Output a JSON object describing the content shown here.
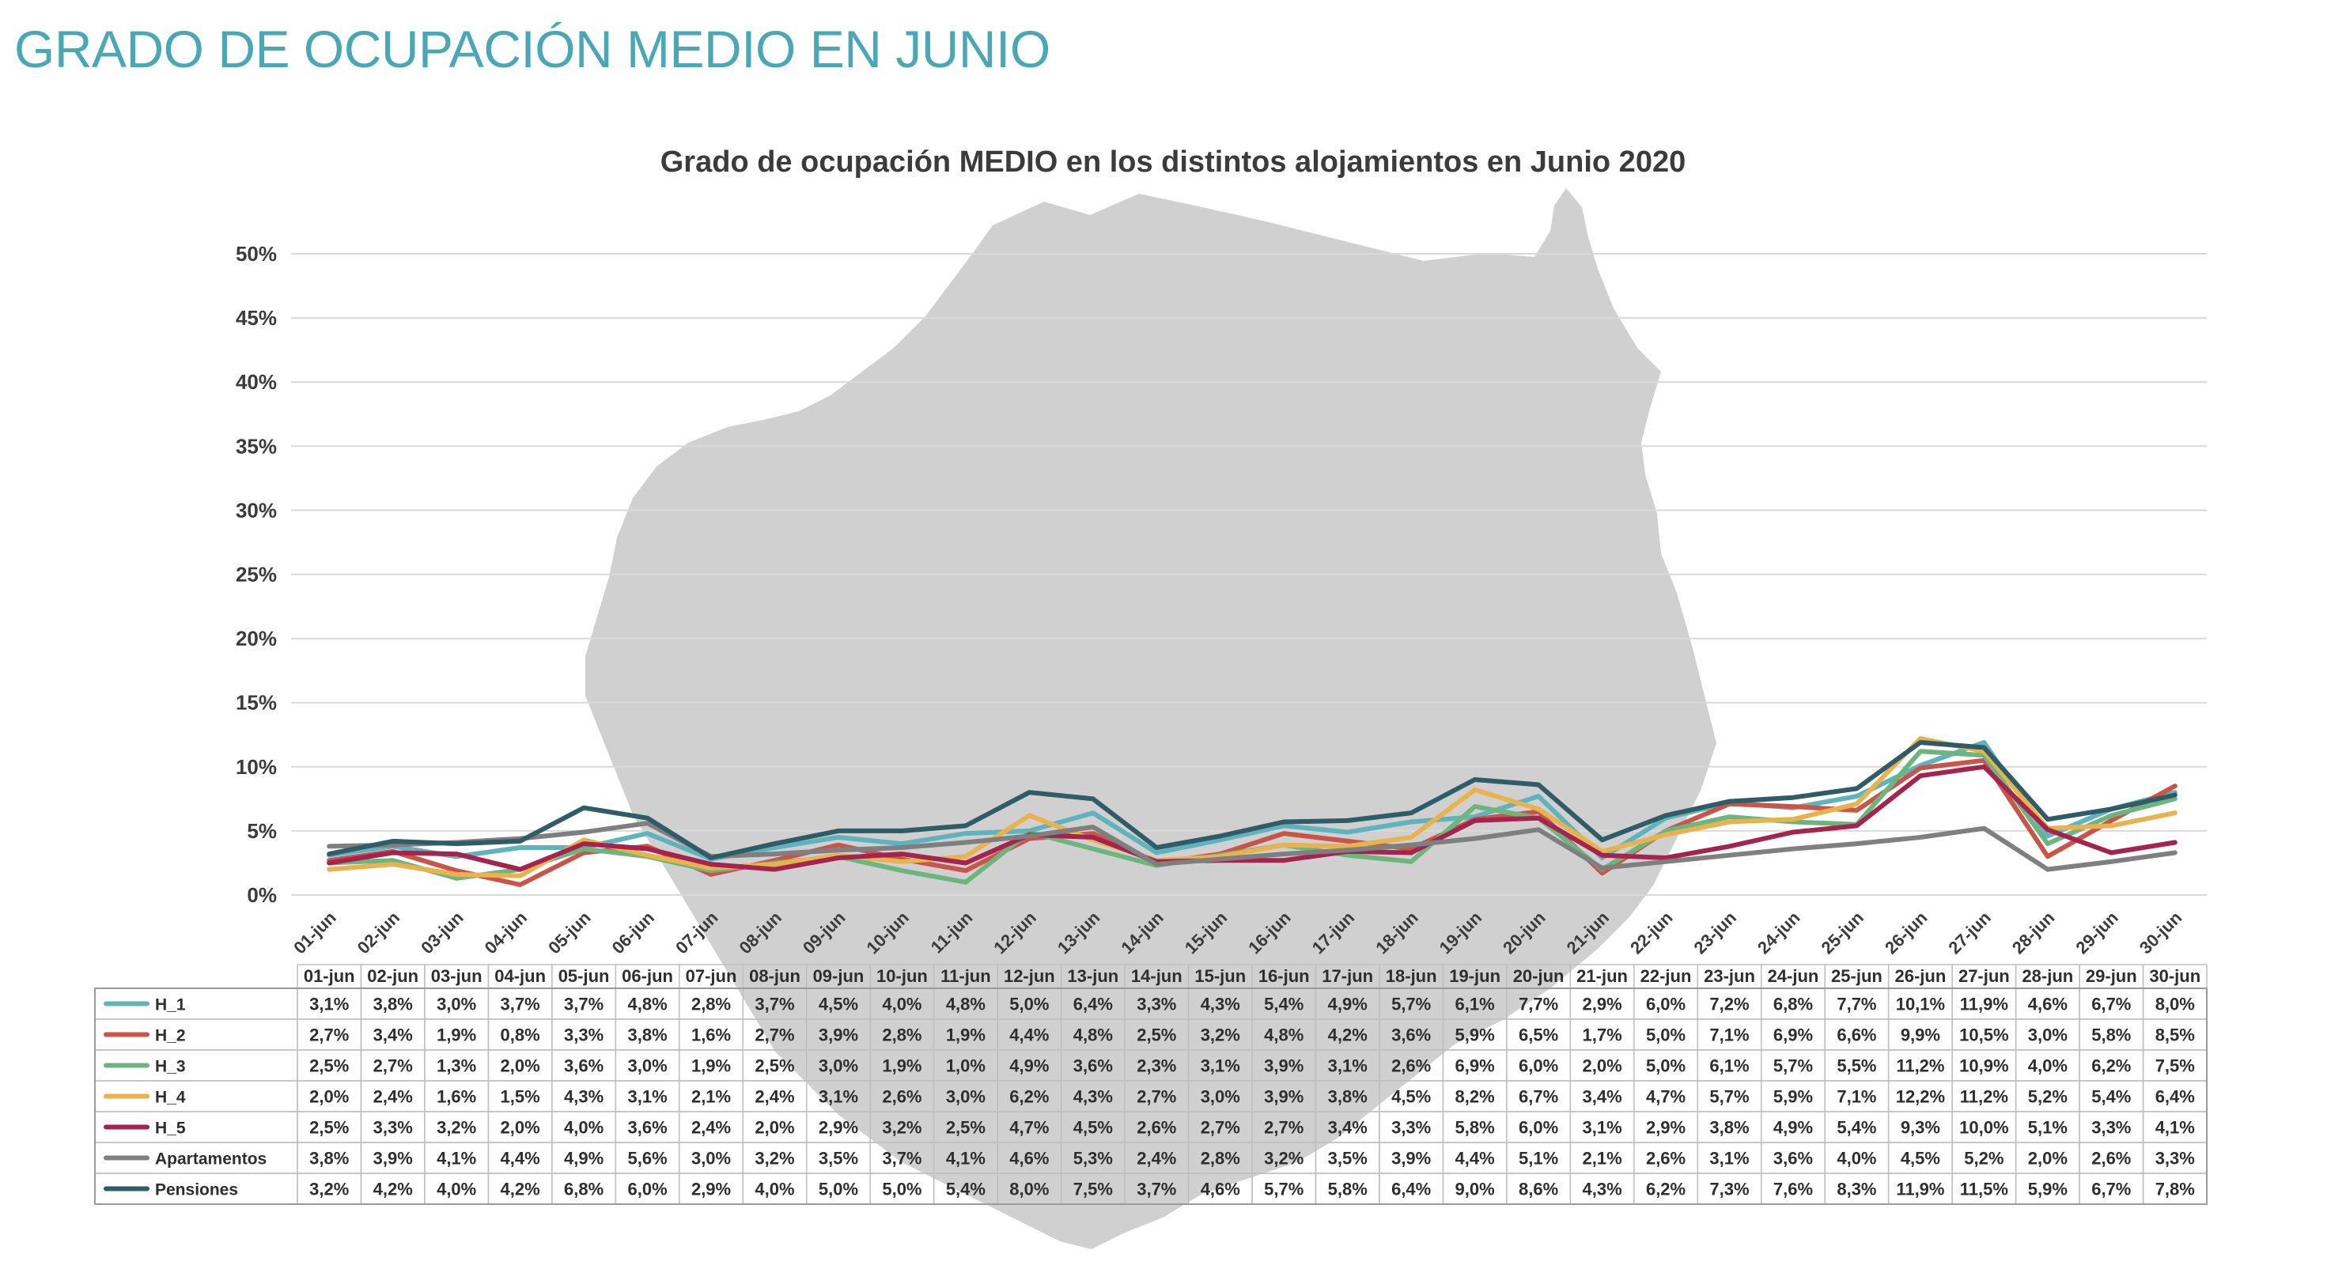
{
  "page": {
    "title": "GRADO DE OCUPACIÓN MEDIO EN JUNIO"
  },
  "colors": {
    "title": "#4aa7b6",
    "map_fill": "#a9a9a9",
    "gridline": "#d9d9d9",
    "H_1": "#5fb3bd",
    "H_2": "#c9554a",
    "H_3": "#6db57e",
    "H_4": "#e8b34f",
    "H_5": "#a4234f",
    "Apartamentos": "#7f7f7f",
    "Pensiones": "#2f5c66"
  },
  "chart_data": {
    "type": "line",
    "title": "Grado de ocupación MEDIO en los distintos alojamientos en Junio 2020",
    "xlabel": "",
    "ylabel": "",
    "ylim": [
      0,
      50
    ],
    "yticks": [
      "0%",
      "5%",
      "10%",
      "15%",
      "20%",
      "25%",
      "30%",
      "35%",
      "40%",
      "45%",
      "50%"
    ],
    "grid": true,
    "legend": "data table below chart",
    "x": [
      "01-jun",
      "02-jun",
      "03-jun",
      "04-jun",
      "05-jun",
      "06-jun",
      "07-jun",
      "08-jun",
      "09-jun",
      "10-jun",
      "11-jun",
      "12-jun",
      "13-jun",
      "14-jun",
      "15-jun",
      "16-jun",
      "17-jun",
      "18-jun",
      "19-jun",
      "20-jun",
      "21-jun",
      "22-jun",
      "23-jun",
      "24-jun",
      "25-jun",
      "26-jun",
      "27-jun",
      "28-jun",
      "29-jun",
      "30-jun"
    ],
    "series": [
      {
        "name": "H_1",
        "color": "#5fb3bd",
        "values": [
          3.1,
          3.8,
          3.0,
          3.7,
          3.7,
          4.8,
          2.8,
          3.7,
          4.5,
          4.0,
          4.8,
          5.0,
          6.4,
          3.3,
          4.3,
          5.4,
          4.9,
          5.7,
          6.1,
          7.7,
          2.9,
          6.0,
          7.2,
          6.8,
          7.7,
          10.1,
          11.9,
          4.6,
          6.7,
          8.0
        ],
        "labels": [
          "3,1%",
          "3,8%",
          "3,0%",
          "3,7%",
          "3,7%",
          "4,8%",
          "2,8%",
          "3,7%",
          "4,5%",
          "4,0%",
          "4,8%",
          "5,0%",
          "6,4%",
          "3,3%",
          "4,3%",
          "5,4%",
          "4,9%",
          "5,7%",
          "6,1%",
          "7,7%",
          "2,9%",
          "6,0%",
          "7,2%",
          "6,8%",
          "7,7%",
          "10,1%",
          "11,9%",
          "4,6%",
          "6,7%",
          "8,0%"
        ]
      },
      {
        "name": "H_2",
        "color": "#c9554a",
        "values": [
          2.7,
          3.4,
          1.9,
          0.8,
          3.3,
          3.8,
          1.6,
          2.7,
          3.9,
          2.8,
          1.9,
          4.4,
          4.8,
          2.5,
          3.2,
          4.8,
          4.2,
          3.6,
          5.9,
          6.5,
          1.7,
          5.0,
          7.1,
          6.9,
          6.6,
          9.9,
          10.5,
          3.0,
          5.8,
          8.5
        ],
        "labels": [
          "2,7%",
          "3,4%",
          "1,9%",
          "0,8%",
          "3,3%",
          "3,8%",
          "1,6%",
          "2,7%",
          "3,9%",
          "2,8%",
          "1,9%",
          "4,4%",
          "4,8%",
          "2,5%",
          "3,2%",
          "4,8%",
          "4,2%",
          "3,6%",
          "5,9%",
          "6,5%",
          "1,7%",
          "5,0%",
          "7,1%",
          "6,9%",
          "6,6%",
          "9,9%",
          "10,5%",
          "3,0%",
          "5,8%",
          "8,5%"
        ]
      },
      {
        "name": "H_3",
        "color": "#6db57e",
        "values": [
          2.5,
          2.7,
          1.3,
          2.0,
          3.6,
          3.0,
          1.9,
          2.5,
          3.0,
          1.9,
          1.0,
          4.9,
          3.6,
          2.3,
          3.1,
          3.9,
          3.1,
          2.6,
          6.9,
          6.0,
          2.0,
          5.0,
          6.1,
          5.7,
          5.5,
          11.2,
          10.9,
          4.0,
          6.2,
          7.5
        ],
        "labels": [
          "2,5%",
          "2,7%",
          "1,3%",
          "2,0%",
          "3,6%",
          "3,0%",
          "1,9%",
          "2,5%",
          "3,0%",
          "1,9%",
          "1,0%",
          "4,9%",
          "3,6%",
          "2,3%",
          "3,1%",
          "3,9%",
          "3,1%",
          "2,6%",
          "6,9%",
          "6,0%",
          "2,0%",
          "5,0%",
          "6,1%",
          "5,7%",
          "5,5%",
          "11,2%",
          "10,9%",
          "4,0%",
          "6,2%",
          "7,5%"
        ]
      },
      {
        "name": "H_4",
        "color": "#e8b34f",
        "values": [
          2.0,
          2.4,
          1.6,
          1.5,
          4.3,
          3.1,
          2.1,
          2.4,
          3.1,
          2.6,
          3.0,
          6.2,
          4.3,
          2.7,
          3.0,
          3.9,
          3.8,
          4.5,
          8.2,
          6.7,
          3.4,
          4.7,
          5.7,
          5.9,
          7.1,
          12.2,
          11.2,
          5.2,
          5.4,
          6.4
        ],
        "labels": [
          "2,0%",
          "2,4%",
          "1,6%",
          "1,5%",
          "4,3%",
          "3,1%",
          "2,1%",
          "2,4%",
          "3,1%",
          "2,6%",
          "3,0%",
          "6,2%",
          "4,3%",
          "2,7%",
          "3,0%",
          "3,9%",
          "3,8%",
          "4,5%",
          "8,2%",
          "6,7%",
          "3,4%",
          "4,7%",
          "5,7%",
          "5,9%",
          "7,1%",
          "12,2%",
          "11,2%",
          "5,2%",
          "5,4%",
          "6,4%"
        ]
      },
      {
        "name": "H_5",
        "color": "#a4234f",
        "values": [
          2.5,
          3.3,
          3.2,
          2.0,
          4.0,
          3.6,
          2.4,
          2.0,
          2.9,
          3.2,
          2.5,
          4.7,
          4.5,
          2.6,
          2.7,
          2.7,
          3.4,
          3.3,
          5.8,
          6.0,
          3.1,
          2.9,
          3.8,
          4.9,
          5.4,
          9.3,
          10.0,
          5.1,
          3.3,
          4.1
        ],
        "labels": [
          "2,5%",
          "3,3%",
          "3,2%",
          "2,0%",
          "4,0%",
          "3,6%",
          "2,4%",
          "2,0%",
          "2,9%",
          "3,2%",
          "2,5%",
          "4,7%",
          "4,5%",
          "2,6%",
          "2,7%",
          "2,7%",
          "3,4%",
          "3,3%",
          "5,8%",
          "6,0%",
          "3,1%",
          "2,9%",
          "3,8%",
          "4,9%",
          "5,4%",
          "9,3%",
          "10,0%",
          "5,1%",
          "3,3%",
          "4,1%"
        ]
      },
      {
        "name": "Apartamentos",
        "color": "#7f7f7f",
        "values": [
          3.8,
          3.9,
          4.1,
          4.4,
          4.9,
          5.6,
          3.0,
          3.2,
          3.5,
          3.7,
          4.1,
          4.6,
          5.3,
          2.4,
          2.8,
          3.2,
          3.5,
          3.9,
          4.4,
          5.1,
          2.1,
          2.6,
          3.1,
          3.6,
          4.0,
          4.5,
          5.2,
          2.0,
          2.6,
          3.3
        ],
        "labels": [
          "3,8%",
          "3,9%",
          "4,1%",
          "4,4%",
          "4,9%",
          "5,6%",
          "3,0%",
          "3,2%",
          "3,5%",
          "3,7%",
          "4,1%",
          "4,6%",
          "5,3%",
          "2,4%",
          "2,8%",
          "3,2%",
          "3,5%",
          "3,9%",
          "4,4%",
          "5,1%",
          "2,1%",
          "2,6%",
          "3,1%",
          "3,6%",
          "4,0%",
          "4,5%",
          "5,2%",
          "2,0%",
          "2,6%",
          "3,3%"
        ]
      },
      {
        "name": "Pensiones",
        "color": "#2f5c66",
        "values": [
          3.2,
          4.2,
          4.0,
          4.2,
          6.8,
          6.0,
          2.9,
          4.0,
          5.0,
          5.0,
          5.4,
          8.0,
          7.5,
          3.7,
          4.6,
          5.7,
          5.8,
          6.4,
          9.0,
          8.6,
          4.3,
          6.2,
          7.3,
          7.6,
          8.3,
          11.9,
          11.5,
          5.9,
          6.7,
          7.8
        ],
        "labels": [
          "3,2%",
          "4,2%",
          "4,0%",
          "4,2%",
          "6,8%",
          "6,0%",
          "2,9%",
          "4,0%",
          "5,0%",
          "5,0%",
          "5,4%",
          "8,0%",
          "7,5%",
          "3,7%",
          "4,6%",
          "5,7%",
          "5,8%",
          "6,4%",
          "9,0%",
          "8,6%",
          "4,3%",
          "6,2%",
          "7,3%",
          "7,6%",
          "8,3%",
          "11,9%",
          "11,5%",
          "5,9%",
          "6,7%",
          "7,8%"
        ]
      }
    ]
  }
}
